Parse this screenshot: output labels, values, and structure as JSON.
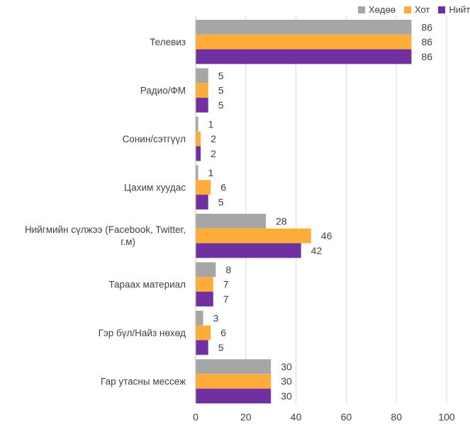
{
  "chart_data": {
    "type": "bar",
    "orientation": "horizontal",
    "categories": [
      "Телевиз",
      "Радио/ФМ",
      "Сонин/сэтгүүл",
      "Цахим хуудас",
      "Нийгмийн сүлжээ (Facebook, Twitter, г.м)",
      "Тараах материал",
      "Гэр бүл/Найз нөхөд",
      "Гар утасны мессеж"
    ],
    "series": [
      {
        "name": "Хөдөө",
        "color": "#A6A6A6",
        "values": [
          86,
          5,
          1,
          1,
          28,
          8,
          3,
          30
        ],
        "labels": [
          "86",
          "5",
          "1",
          "1",
          "28",
          "8",
          "3",
          "30"
        ]
      },
      {
        "name": "Хот",
        "color": "#FFAC3A",
        "values": [
          86,
          5,
          2,
          6,
          46,
          7,
          6,
          30
        ],
        "labels": [
          "86",
          "5",
          "2",
          "6",
          "46",
          "7",
          "6",
          "30"
        ]
      },
      {
        "name": "Нийт",
        "color": "#7030A0",
        "values": [
          86,
          5,
          2,
          5,
          42,
          7,
          5,
          30
        ],
        "labels": [
          "86",
          "5",
          "2",
          "5",
          "42",
          "7",
          "5",
          "30"
        ]
      }
    ],
    "xlim": [
      0,
      100
    ],
    "xticks": [
      "0",
      "20",
      "40",
      "60",
      "80",
      "100"
    ],
    "grid": true,
    "legend_position": "top-right",
    "title": "",
    "xlabel": "",
    "ylabel": ""
  }
}
